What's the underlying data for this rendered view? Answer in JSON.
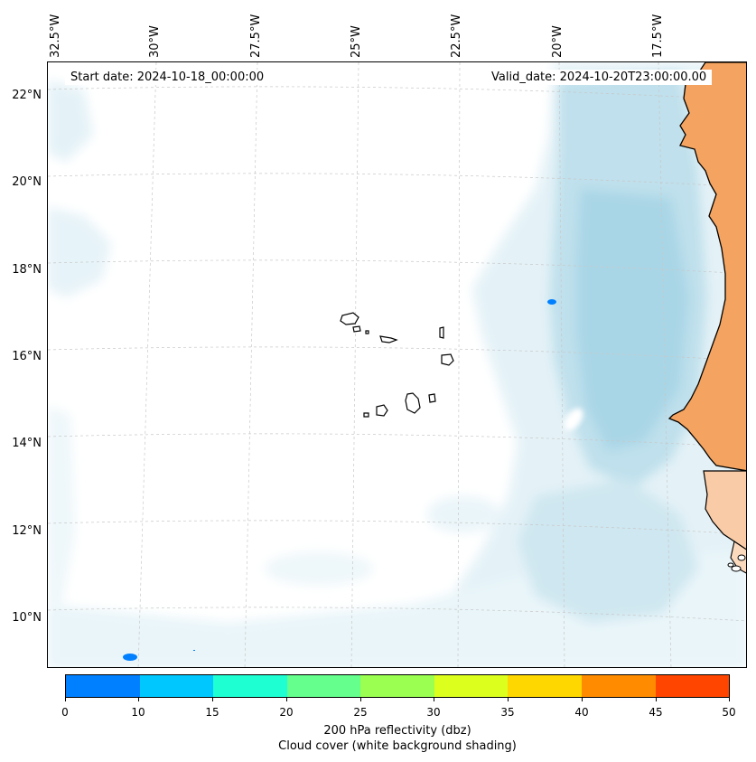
{
  "map": {
    "start_label": "Start date: 2024-10-18_00:00:00",
    "valid_label": "Valid_date: 2024-10-20T23:00:00.00",
    "longitude_labels": [
      "32.5°W",
      "30°W",
      "27.5°W",
      "25°W",
      "22.5°W",
      "20°W",
      "17.5°W"
    ],
    "latitude_labels": [
      "22°N",
      "20°N",
      "18°N",
      "16°N",
      "14°N",
      "12°N",
      "10°N"
    ],
    "colors": {
      "land": "#f4a460",
      "cloud_light": "#e4f2f7",
      "cloud_mid": "#bfe0ec",
      "cloud_dense": "#a9d6e6",
      "coastline": "#000000",
      "grid": "#c8c8c8"
    }
  },
  "colorbar": {
    "ticks": [
      "0",
      "10",
      "15",
      "20",
      "25",
      "30",
      "35",
      "40",
      "45",
      "50"
    ],
    "colors": [
      "#0080ff",
      "#00c8ff",
      "#1effd2",
      "#64ff8c",
      "#9aff50",
      "#dcff1e",
      "#ffd700",
      "#ff8c00",
      "#ff4500"
    ],
    "label": "200 hPa reflectivity (dbz)",
    "sublabel": "Cloud cover (white background shading)"
  }
}
